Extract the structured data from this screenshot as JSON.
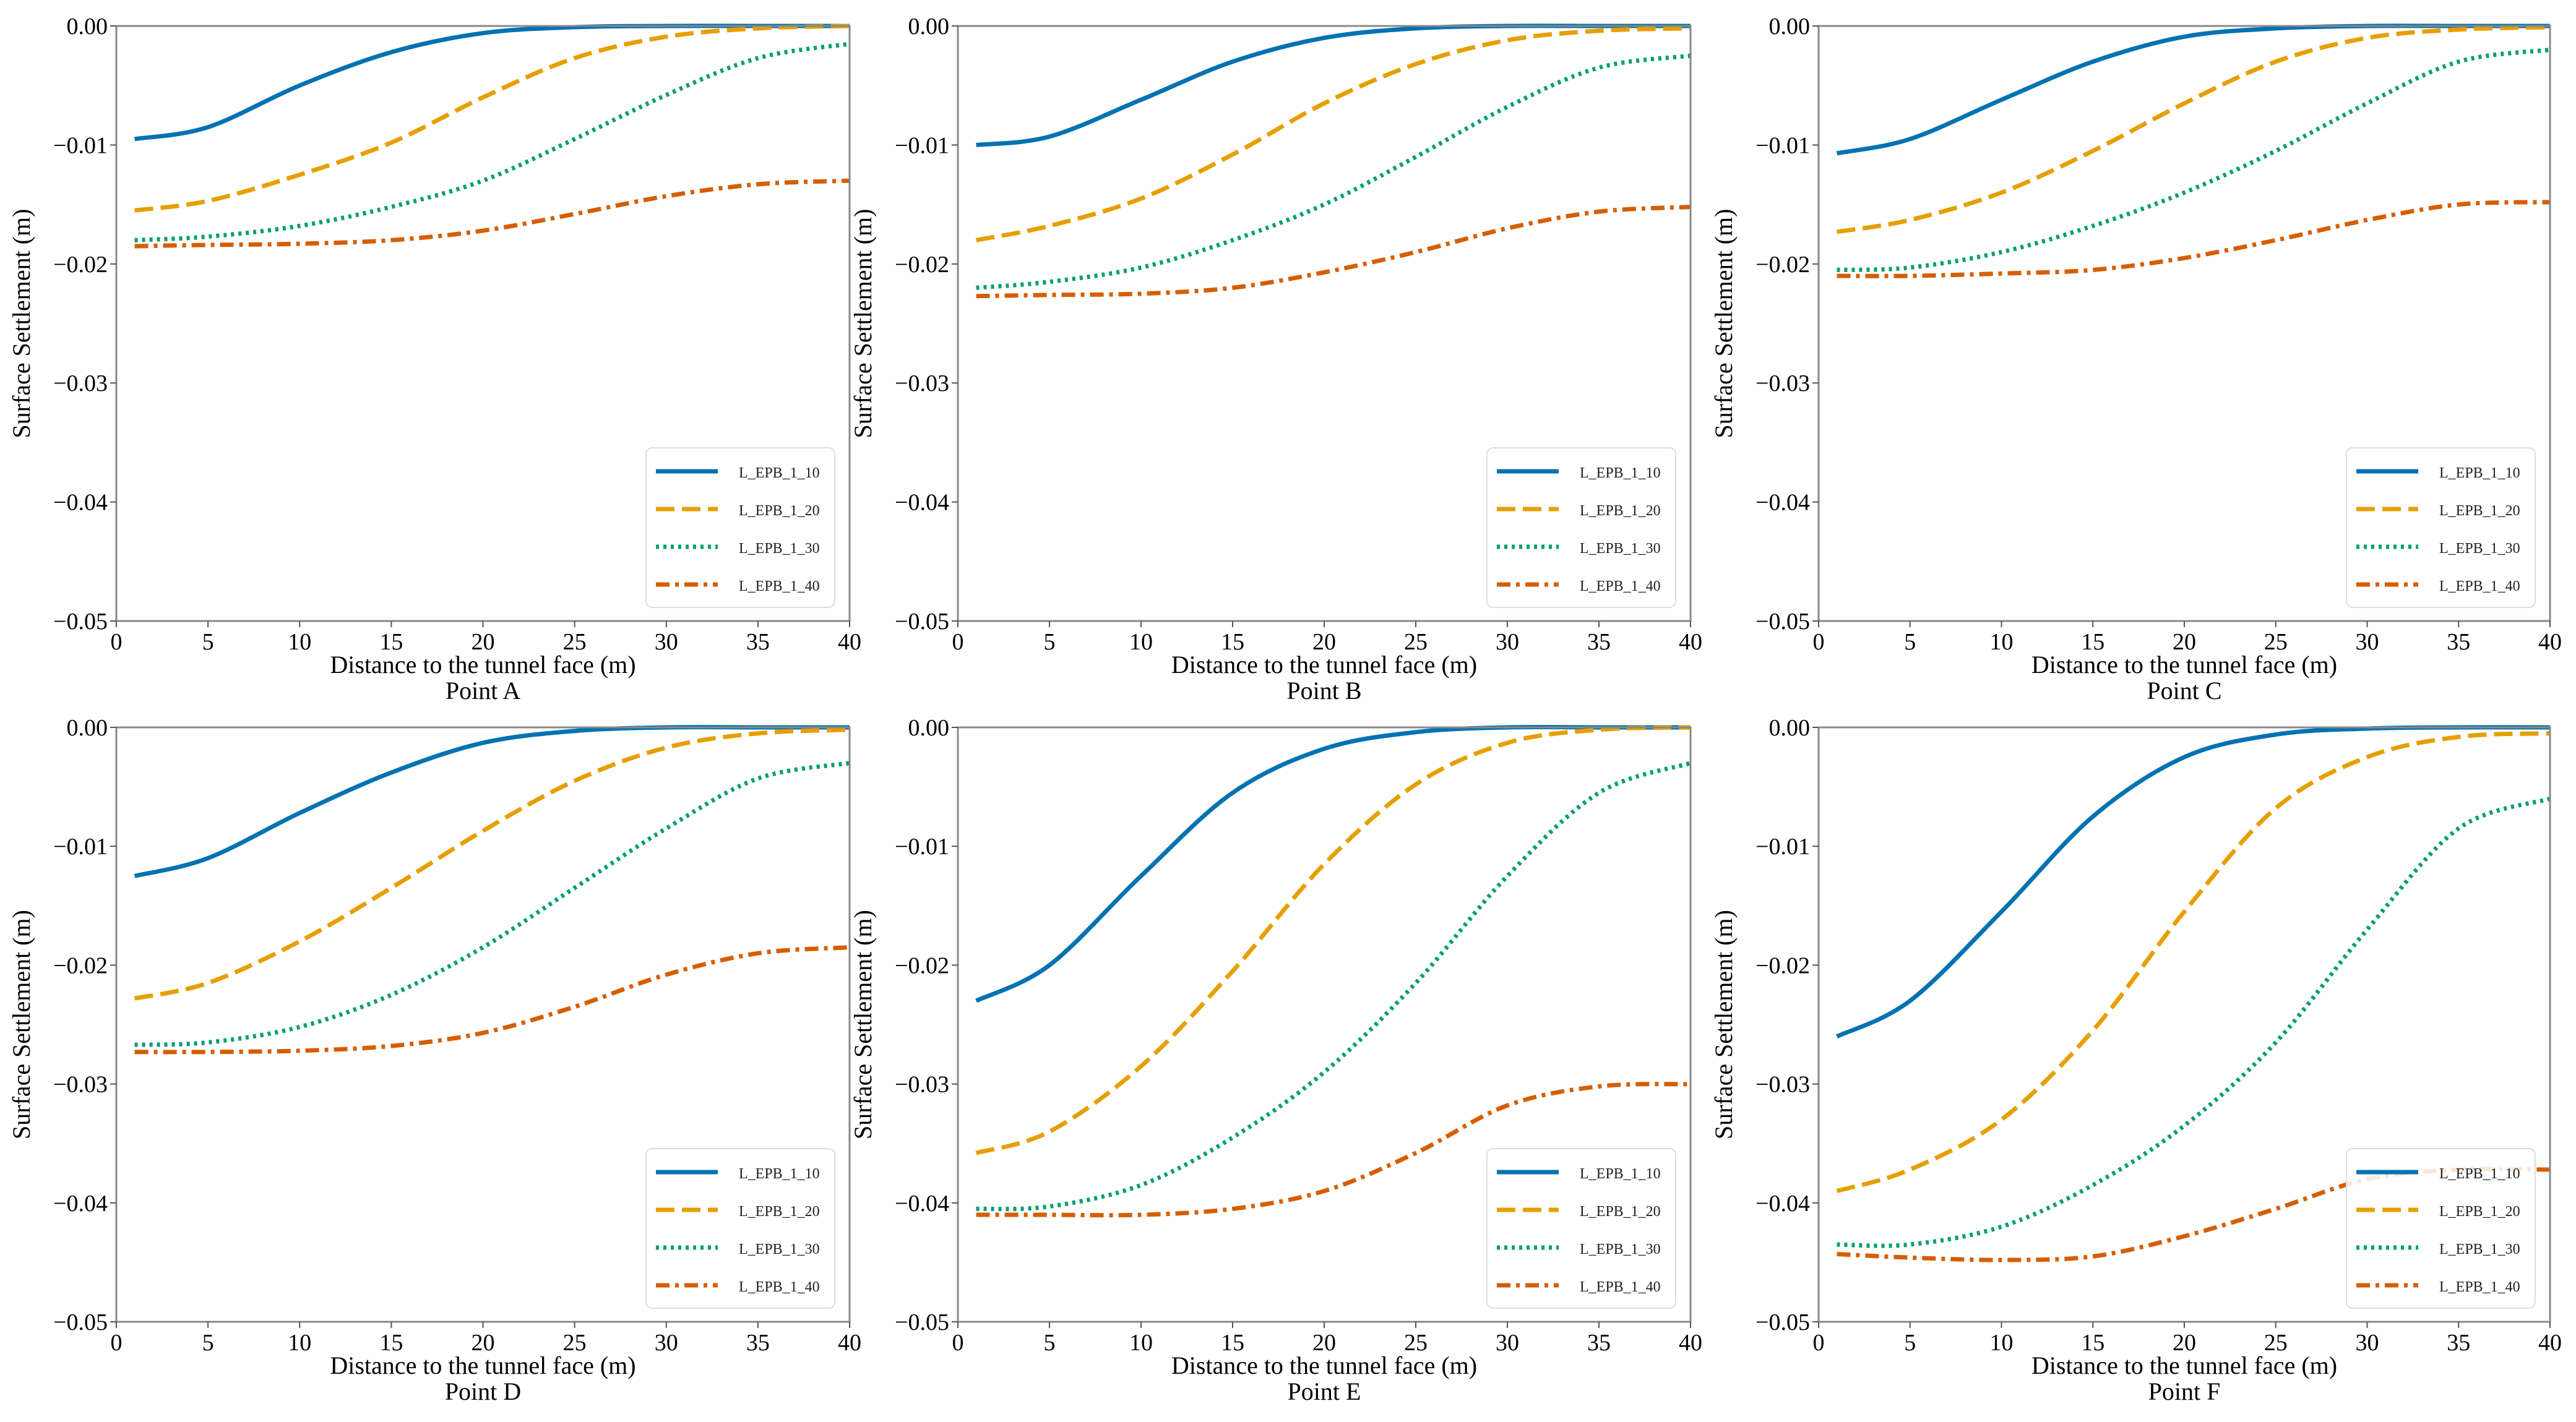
{
  "colors": {
    "L_EPB_1_10": "#0072B2",
    "L_EPB_1_20": "#E69F00",
    "L_EPB_1_30": "#009E73",
    "L_EPB_1_40": "#D55E00"
  },
  "chart_data": [
    {
      "type": "line",
      "title": "Point A",
      "xlabel": "Distance to the tunnel face (m)",
      "ylabel": "Surface Settlement (m)",
      "xlim": [
        0,
        40
      ],
      "ylim": [
        -0.05,
        0
      ],
      "xticks": [
        "0",
        "5",
        "10",
        "15",
        "20",
        "25",
        "30",
        "35",
        "40"
      ],
      "yticks": [
        "0.00",
        "−0.01",
        "−0.02",
        "−0.03",
        "−0.04",
        "−0.05"
      ],
      "legend_position": "lower-right",
      "grid": false,
      "x": [
        1,
        5,
        10,
        15,
        20,
        25,
        30,
        35,
        40
      ],
      "series": [
        {
          "name": "L_EPB_1_10",
          "style": "solid",
          "values": [
            -0.0095,
            -0.0085,
            -0.005,
            -0.0022,
            -0.0006,
            -0.0001,
            0,
            0,
            0
          ]
        },
        {
          "name": "L_EPB_1_20",
          "style": "dashed",
          "values": [
            -0.0155,
            -0.0147,
            -0.0125,
            -0.0098,
            -0.006,
            -0.0027,
            -0.0009,
            -0.0002,
            0
          ]
        },
        {
          "name": "L_EPB_1_30",
          "style": "dotted",
          "values": [
            -0.018,
            -0.0177,
            -0.0168,
            -0.0152,
            -0.013,
            -0.0095,
            -0.0058,
            -0.0027,
            -0.0015
          ]
        },
        {
          "name": "L_EPB_1_40",
          "style": "dashdot",
          "values": [
            -0.0185,
            -0.0184,
            -0.0183,
            -0.018,
            -0.0172,
            -0.0158,
            -0.0143,
            -0.0133,
            -0.013
          ]
        }
      ]
    },
    {
      "type": "line",
      "title": "Point B",
      "xlabel": "Distance to the tunnel face (m)",
      "ylabel": "Surface Settlement (m)",
      "xlim": [
        0,
        40
      ],
      "ylim": [
        -0.05,
        0
      ],
      "xticks": [
        "0",
        "5",
        "10",
        "15",
        "20",
        "25",
        "30",
        "35",
        "40"
      ],
      "yticks": [
        "0.00",
        "−0.01",
        "−0.02",
        "−0.03",
        "−0.04",
        "−0.05"
      ],
      "legend_position": "lower-right",
      "grid": false,
      "x": [
        1,
        5,
        10,
        15,
        20,
        25,
        30,
        35,
        40
      ],
      "series": [
        {
          "name": "L_EPB_1_10",
          "style": "solid",
          "values": [
            -0.01,
            -0.0093,
            -0.0062,
            -0.003,
            -0.001,
            -0.0002,
            0,
            0,
            0
          ]
        },
        {
          "name": "L_EPB_1_20",
          "style": "dashed",
          "values": [
            -0.018,
            -0.0168,
            -0.0145,
            -0.0108,
            -0.0065,
            -0.0032,
            -0.0012,
            -0.0004,
            -0.0002
          ]
        },
        {
          "name": "L_EPB_1_30",
          "style": "dotted",
          "values": [
            -0.022,
            -0.0215,
            -0.0203,
            -0.018,
            -0.015,
            -0.011,
            -0.0068,
            -0.0035,
            -0.0025
          ]
        },
        {
          "name": "L_EPB_1_40",
          "style": "dashdot",
          "values": [
            -0.0227,
            -0.0226,
            -0.0225,
            -0.022,
            -0.0207,
            -0.019,
            -0.017,
            -0.0156,
            -0.0152
          ]
        }
      ]
    },
    {
      "type": "line",
      "title": "Point C",
      "xlabel": "Distance to the tunnel face (m)",
      "ylabel": "Surface Settlement (m)",
      "xlim": [
        0,
        40
      ],
      "ylim": [
        -0.05,
        0
      ],
      "xticks": [
        "0",
        "5",
        "10",
        "15",
        "20",
        "25",
        "30",
        "35",
        "40"
      ],
      "yticks": [
        "0.00",
        "−0.01",
        "−0.02",
        "−0.03",
        "−0.04",
        "−0.05"
      ],
      "legend_position": "lower-right",
      "grid": false,
      "x": [
        1,
        5,
        10,
        15,
        20,
        25,
        30,
        35,
        40
      ],
      "series": [
        {
          "name": "L_EPB_1_10",
          "style": "solid",
          "values": [
            -0.0107,
            -0.0095,
            -0.0062,
            -0.003,
            -0.0009,
            -0.0002,
            0,
            0,
            0
          ]
        },
        {
          "name": "L_EPB_1_20",
          "style": "dashed",
          "values": [
            -0.0173,
            -0.0163,
            -0.014,
            -0.0105,
            -0.0065,
            -0.003,
            -0.001,
            -0.0003,
            -0.0001
          ]
        },
        {
          "name": "L_EPB_1_30",
          "style": "dotted",
          "values": [
            -0.0205,
            -0.0203,
            -0.019,
            -0.0168,
            -0.014,
            -0.0105,
            -0.0065,
            -0.003,
            -0.002
          ]
        },
        {
          "name": "L_EPB_1_40",
          "style": "dashdot",
          "values": [
            -0.021,
            -0.021,
            -0.0208,
            -0.0205,
            -0.0195,
            -0.018,
            -0.0163,
            -0.015,
            -0.0148
          ]
        }
      ]
    },
    {
      "type": "line",
      "title": "Point D",
      "xlabel": "Distance to the tunnel face (m)",
      "ylabel": "Surface Settlement (m)",
      "xlim": [
        0,
        40
      ],
      "ylim": [
        -0.05,
        0
      ],
      "xticks": [
        "0",
        "5",
        "10",
        "15",
        "20",
        "25",
        "30",
        "35",
        "40"
      ],
      "yticks": [
        "0.00",
        "−0.01",
        "−0.02",
        "−0.03",
        "−0.04",
        "−0.05"
      ],
      "legend_position": "lower-right",
      "grid": false,
      "x": [
        1,
        5,
        10,
        15,
        20,
        25,
        30,
        35,
        40
      ],
      "series": [
        {
          "name": "L_EPB_1_10",
          "style": "solid",
          "values": [
            -0.0125,
            -0.011,
            -0.0072,
            -0.0038,
            -0.0013,
            -0.0003,
            0,
            0,
            0
          ]
        },
        {
          "name": "L_EPB_1_20",
          "style": "dashed",
          "values": [
            -0.0228,
            -0.0215,
            -0.018,
            -0.0135,
            -0.0087,
            -0.0045,
            -0.0017,
            -0.0005,
            -0.0002
          ]
        },
        {
          "name": "L_EPB_1_30",
          "style": "dotted",
          "values": [
            -0.0267,
            -0.0265,
            -0.0252,
            -0.0225,
            -0.0185,
            -0.0135,
            -0.0085,
            -0.0043,
            -0.003
          ]
        },
        {
          "name": "L_EPB_1_40",
          "style": "dashdot",
          "values": [
            -0.0273,
            -0.0273,
            -0.0272,
            -0.0268,
            -0.0257,
            -0.0235,
            -0.0208,
            -0.019,
            -0.0185
          ]
        }
      ]
    },
    {
      "type": "line",
      "title": "Point E",
      "xlabel": "Distance to the tunnel face (m)",
      "ylabel": "Surface Settlement (m)",
      "xlim": [
        0,
        40
      ],
      "ylim": [
        -0.05,
        0
      ],
      "xticks": [
        "0",
        "5",
        "10",
        "15",
        "20",
        "25",
        "30",
        "35",
        "40"
      ],
      "yticks": [
        "0.00",
        "−0.01",
        "−0.02",
        "−0.03",
        "−0.04",
        "−0.05"
      ],
      "legend_position": "lower-right",
      "grid": false,
      "x": [
        1,
        5,
        10,
        15,
        20,
        25,
        30,
        35,
        40
      ],
      "series": [
        {
          "name": "L_EPB_1_10",
          "style": "solid",
          "values": [
            -0.023,
            -0.02,
            -0.0125,
            -0.0055,
            -0.0018,
            -0.0004,
            0,
            0,
            0
          ]
        },
        {
          "name": "L_EPB_1_20",
          "style": "dashed",
          "values": [
            -0.0358,
            -0.034,
            -0.0285,
            -0.0205,
            -0.0115,
            -0.0048,
            -0.0013,
            -0.0002,
            0
          ]
        },
        {
          "name": "L_EPB_1_30",
          "style": "dotted",
          "values": [
            -0.0405,
            -0.0403,
            -0.0385,
            -0.0345,
            -0.029,
            -0.0215,
            -0.0125,
            -0.0055,
            -0.003
          ]
        },
        {
          "name": "L_EPB_1_40",
          "style": "dashdot",
          "values": [
            -0.041,
            -0.041,
            -0.041,
            -0.0405,
            -0.039,
            -0.0358,
            -0.0318,
            -0.0302,
            -0.03
          ]
        }
      ]
    },
    {
      "type": "line",
      "title": "Point F",
      "xlabel": "Distance to the tunnel face (m)",
      "ylabel": "Surface Settlement (m)",
      "xlim": [
        0,
        40
      ],
      "ylim": [
        -0.05,
        0
      ],
      "xticks": [
        "0",
        "5",
        "10",
        "15",
        "20",
        "25",
        "30",
        "35",
        "40"
      ],
      "yticks": [
        "0.00",
        "−0.01",
        "−0.02",
        "−0.03",
        "−0.04",
        "−0.05"
      ],
      "legend_position": "lower-right",
      "grid": false,
      "x": [
        1,
        5,
        10,
        15,
        20,
        25,
        30,
        35,
        40
      ],
      "series": [
        {
          "name": "L_EPB_1_10",
          "style": "solid",
          "values": [
            -0.026,
            -0.023,
            -0.0155,
            -0.0075,
            -0.0025,
            -0.0006,
            -0.0001,
            0,
            0
          ]
        },
        {
          "name": "L_EPB_1_20",
          "style": "dashed",
          "values": [
            -0.039,
            -0.0372,
            -0.033,
            -0.0255,
            -0.0155,
            -0.0068,
            -0.0025,
            -0.0008,
            -0.0005
          ]
        },
        {
          "name": "L_EPB_1_30",
          "style": "dotted",
          "values": [
            -0.0435,
            -0.0435,
            -0.042,
            -0.0385,
            -0.0335,
            -0.0265,
            -0.017,
            -0.0085,
            -0.006
          ]
        },
        {
          "name": "L_EPB_1_40",
          "style": "dashdot",
          "values": [
            -0.0443,
            -0.0446,
            -0.0448,
            -0.0445,
            -0.0428,
            -0.0405,
            -0.038,
            -0.0372,
            -0.0372
          ]
        }
      ]
    }
  ]
}
